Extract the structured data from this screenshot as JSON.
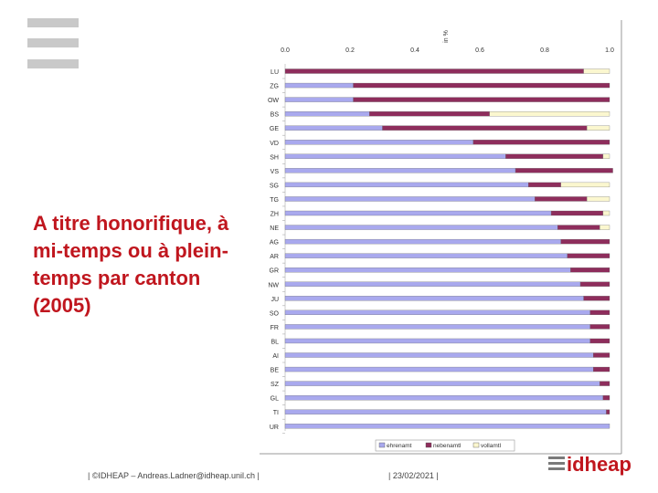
{
  "slide": {
    "title": "A titre honorifique, à mi-temps ou à plein-temps par canton (2005)",
    "footer_left": "| ©IDHEAP – Andreas.Ladner@idheap.unil.ch |",
    "footer_date": "| 23/02/2021 |",
    "logo_text": "idheap"
  },
  "chart_data": {
    "type": "bar",
    "orientation": "horizontal",
    "stacked": true,
    "axis_label": "in %",
    "xlim": [
      0,
      1
    ],
    "x_ticks": [
      "0.0",
      "0.2",
      "0.4",
      "0.6",
      "0.8",
      "1.0"
    ],
    "categories": [
      "LU",
      "ZG",
      "OW",
      "BS",
      "GE",
      "VD",
      "SH",
      "VS",
      "SG",
      "TG",
      "ZH",
      "NE",
      "AG",
      "AR",
      "GR",
      "NW",
      "JU",
      "SO",
      "FR",
      "BL",
      "AI",
      "BE",
      "SZ",
      "GL",
      "TI",
      "UR"
    ],
    "series": [
      {
        "name": "ehrenamt",
        "color": "#a9a9ee",
        "values": [
          0.0,
          0.21,
          0.21,
          0.26,
          0.3,
          0.58,
          0.68,
          0.71,
          0.75,
          0.77,
          0.82,
          0.84,
          0.85,
          0.87,
          0.88,
          0.91,
          0.92,
          0.94,
          0.94,
          0.94,
          0.95,
          0.95,
          0.97,
          0.98,
          0.99,
          1.0
        ]
      },
      {
        "name": "nebenamtl",
        "color": "#8e2d5c",
        "values": [
          0.92,
          0.79,
          0.79,
          0.37,
          0.63,
          0.42,
          0.3,
          0.3,
          0.1,
          0.16,
          0.16,
          0.13,
          0.15,
          0.13,
          0.12,
          0.09,
          0.08,
          0.06,
          0.06,
          0.06,
          0.05,
          0.05,
          0.03,
          0.02,
          0.01,
          0.0
        ]
      },
      {
        "name": "vollamtl",
        "color": "#fbf7cf",
        "values": [
          0.08,
          0.0,
          0.0,
          0.37,
          0.07,
          0.0,
          0.02,
          0.0,
          0.15,
          0.07,
          0.02,
          0.03,
          0.0,
          0.0,
          0.0,
          0.0,
          0.0,
          0.0,
          0.0,
          0.0,
          0.0,
          0.0,
          0.0,
          0.0,
          0.0,
          0.0
        ]
      }
    ],
    "legend_position": "bottom",
    "grid": false
  }
}
